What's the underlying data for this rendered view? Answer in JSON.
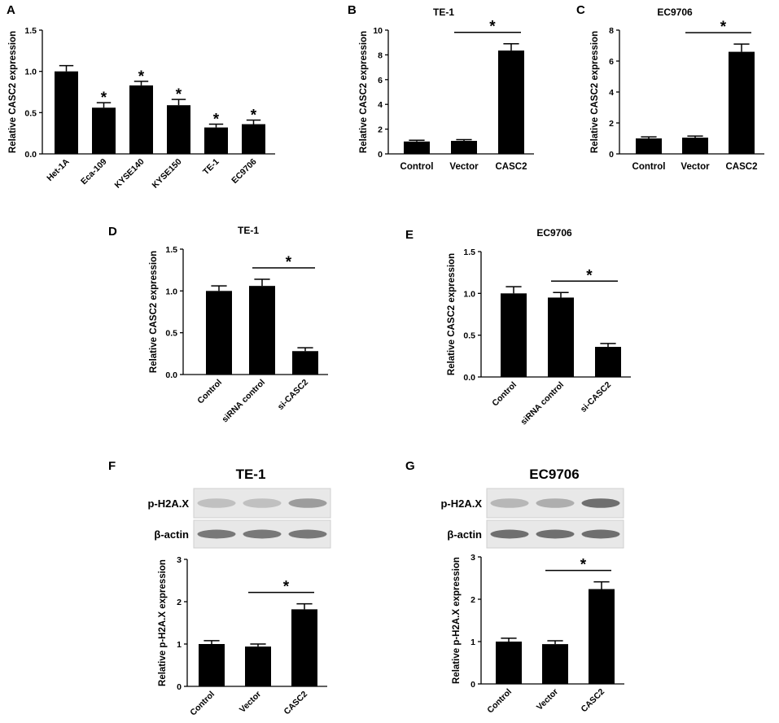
{
  "chart_data": [
    {
      "panel": "A",
      "type": "bar",
      "title": "",
      "ylabel": "Relative CASC2 expression",
      "ylim": [
        0,
        1.5
      ],
      "yticks": [
        "0.0",
        "0.5",
        "1.0",
        "1.5"
      ],
      "categories": [
        "Het-1A",
        "Eca-109",
        "KYSE140",
        "KYSE150",
        "TE-1",
        "EC9706"
      ],
      "values": [
        1.0,
        0.56,
        0.83,
        0.59,
        0.32,
        0.36
      ],
      "errors": [
        0.07,
        0.06,
        0.05,
        0.07,
        0.04,
        0.05
      ],
      "star": "*",
      "stars": [
        1,
        2,
        3,
        4,
        5
      ],
      "brackets": []
    },
    {
      "panel": "B",
      "type": "bar",
      "title": "TE-1",
      "ylabel": "Relative CASC2 expression",
      "ylim": [
        0,
        10
      ],
      "yticks": [
        "0",
        "2",
        "4",
        "6",
        "8",
        "10"
      ],
      "categories": [
        "Control",
        "Vector",
        "CASC2"
      ],
      "values": [
        1.0,
        1.05,
        8.35
      ],
      "errors": [
        0.1,
        0.1,
        0.55
      ],
      "star": "*",
      "stars": [],
      "brackets": [
        [
          1,
          2
        ]
      ]
    },
    {
      "panel": "C",
      "type": "bar",
      "title": "EC9706",
      "ylabel": "Relative CASC2 expression",
      "ylim": [
        0,
        8
      ],
      "yticks": [
        "0",
        "2",
        "4",
        "6",
        "8"
      ],
      "categories": [
        "Control",
        "Vector",
        "CASC2"
      ],
      "values": [
        1.0,
        1.05,
        6.6
      ],
      "errors": [
        0.1,
        0.1,
        0.5
      ],
      "star": "*",
      "stars": [],
      "brackets": [
        [
          1,
          2
        ]
      ]
    },
    {
      "panel": "D",
      "type": "bar",
      "title": "TE-1",
      "ylabel": "Relative CASC2 expression",
      "ylim": [
        0,
        1.5
      ],
      "yticks": [
        "0.0",
        "0.5",
        "1.0",
        "1.5"
      ],
      "categories": [
        "Control",
        "siRNA control",
        "si-CASC2"
      ],
      "values": [
        1.0,
        1.06,
        0.28
      ],
      "errors": [
        0.06,
        0.08,
        0.04
      ],
      "star": "*",
      "stars": [],
      "brackets": [
        [
          1,
          2
        ]
      ]
    },
    {
      "panel": "E",
      "type": "bar",
      "title": "EC9706",
      "ylabel": "Relative CASC2 expression",
      "ylim": [
        0,
        1.5
      ],
      "yticks": [
        "0.0",
        "0.5",
        "1.0",
        "1.5"
      ],
      "categories": [
        "Control",
        "siRNA control",
        "si-CASC2"
      ],
      "values": [
        1.0,
        0.95,
        0.36
      ],
      "errors": [
        0.08,
        0.06,
        0.04
      ],
      "star": "*",
      "stars": [],
      "brackets": [
        [
          1,
          2
        ]
      ]
    },
    {
      "panel": "F",
      "type": "bar",
      "title": "TE-1",
      "ylabel": "Relative p-H2A.X expression",
      "ylim": [
        0,
        3
      ],
      "yticks": [
        "0",
        "1",
        "2",
        "3"
      ],
      "categories": [
        "Control",
        "Vector",
        "CASC2"
      ],
      "values": [
        1.0,
        0.94,
        1.82
      ],
      "errors": [
        0.08,
        0.06,
        0.13
      ],
      "star": "*",
      "stars": [],
      "brackets": [
        [
          1,
          2
        ]
      ],
      "blots": [
        "p-H2A.X",
        "β-actin"
      ]
    },
    {
      "panel": "G",
      "type": "bar",
      "title": "EC9706",
      "ylabel": "Relative p-H2A.X expression",
      "ylim": [
        0,
        3
      ],
      "yticks": [
        "0",
        "1",
        "2",
        "3"
      ],
      "categories": [
        "Control",
        "Vector",
        "CASC2"
      ],
      "values": [
        1.0,
        0.94,
        2.24
      ],
      "errors": [
        0.08,
        0.08,
        0.17
      ],
      "star": "*",
      "stars": [],
      "brackets": [
        [
          1,
          2
        ]
      ],
      "blots": [
        "p-H2A.X",
        "β-actin"
      ]
    }
  ]
}
